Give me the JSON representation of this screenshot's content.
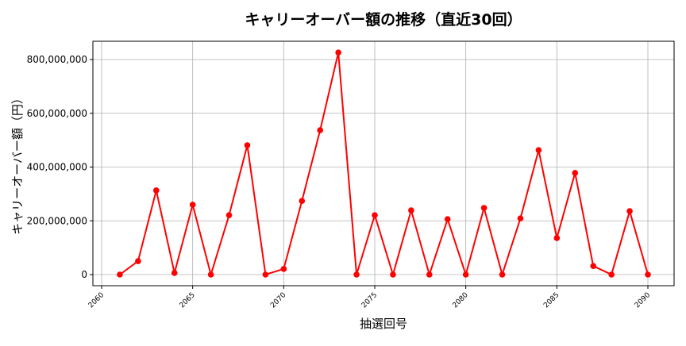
{
  "chart_data": {
    "type": "line",
    "title": "キャリーオーバー額の推移（直近30回）",
    "xlabel": "抽選回号",
    "ylabel": "キャリーオーバー額（円）",
    "x": [
      2061,
      2062,
      2063,
      2064,
      2065,
      2066,
      2067,
      2068,
      2069,
      2070,
      2071,
      2072,
      2073,
      2074,
      2075,
      2076,
      2077,
      2078,
      2079,
      2080,
      2081,
      2082,
      2083,
      2084,
      2085,
      2086,
      2087,
      2088,
      2089,
      2090
    ],
    "series": [
      {
        "name": "キャリーオーバー額",
        "color": "#ff0000",
        "values": [
          0,
          50000000,
          313000000,
          6000000,
          260000000,
          0,
          221000000,
          481000000,
          0,
          21000000,
          274000000,
          537000000,
          826000000,
          0,
          221000000,
          0,
          239000000,
          0,
          206000000,
          0,
          248000000,
          0,
          209000000,
          463000000,
          136000000,
          378000000,
          32000000,
          0,
          236000000,
          0
        ]
      }
    ],
    "xticks": [
      2060,
      2065,
      2070,
      2075,
      2080,
      2085,
      2090
    ],
    "xtick_labels": [
      "2060",
      "2065",
      "2070",
      "2075",
      "2080",
      "2085",
      "2090"
    ],
    "yticks": [
      0,
      200000000,
      400000000,
      600000000,
      800000000
    ],
    "ytick_labels": [
      "0",
      "200,000,000",
      "400,000,000",
      "600,000,000",
      "800,000,000"
    ],
    "grid": true
  }
}
